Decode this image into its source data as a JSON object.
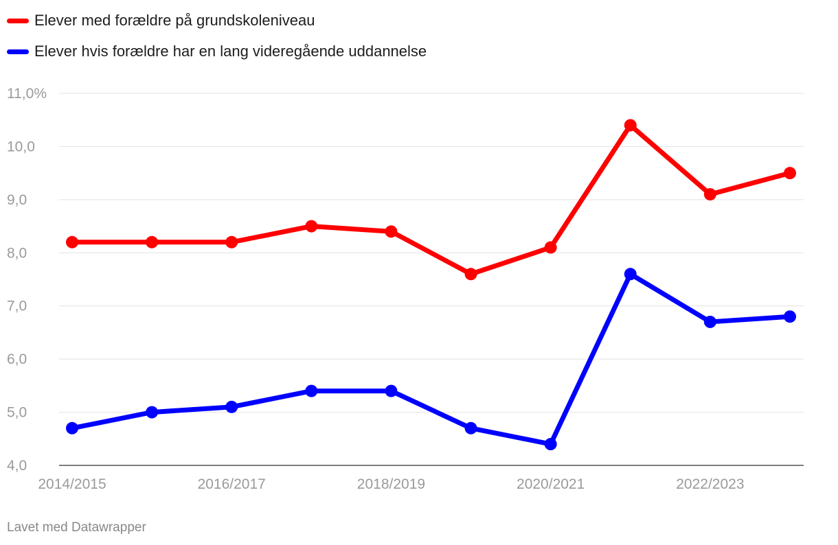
{
  "chart_data": {
    "type": "line",
    "categories": [
      "2014/2015",
      "2015/2016",
      "2016/2017",
      "2017/2018",
      "2018/2019",
      "2019/2020",
      "2020/2021",
      "2021/2022",
      "2022/2023",
      "2023/2024"
    ],
    "x_tick_labels": [
      "2014/2015",
      "",
      "2016/2017",
      "",
      "2018/2019",
      "",
      "2020/2021",
      "",
      "2022/2023",
      ""
    ],
    "y_ticks": [
      4.0,
      5.0,
      6.0,
      7.0,
      8.0,
      9.0,
      10.0,
      11.0
    ],
    "y_tick_labels": [
      "4,0",
      "5,0",
      "6,0",
      "7,0",
      "8,0",
      "9,0",
      "10,0",
      "11,0%"
    ],
    "ylim": [
      4,
      11
    ],
    "grid": "horizontal",
    "legend": "top-left",
    "series": [
      {
        "name": "Elever med forældre på grundskoleniveau",
        "color": "#ff0000",
        "values": [
          8.2,
          8.2,
          8.2,
          8.5,
          8.4,
          7.6,
          8.1,
          10.4,
          9.1,
          9.5
        ]
      },
      {
        "name": "Elever hvis forældre har en lang videregående uddannelse",
        "color": "#0000ff",
        "values": [
          4.7,
          5.0,
          5.1,
          5.4,
          5.4,
          4.7,
          4.4,
          7.6,
          6.7,
          6.8
        ]
      }
    ]
  },
  "footer": {
    "credit": "Lavet med Datawrapper"
  }
}
